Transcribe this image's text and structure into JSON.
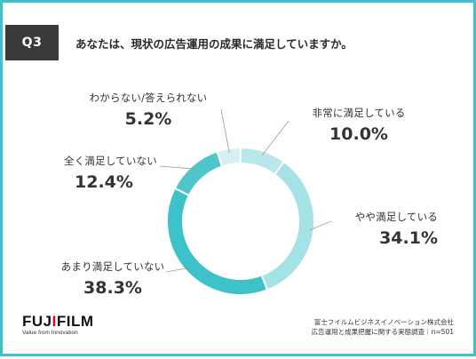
{
  "question": {
    "badge": "Q3",
    "text": "あなたは、現状の広告運用の成果に満足していますか。"
  },
  "chart_data": {
    "type": "pie",
    "categories": [
      "非常に満足している",
      "やや満足している",
      "あまり満足していない",
      "全く満足していない",
      "わからない/答えられない"
    ],
    "values": [
      10.0,
      34.1,
      38.3,
      12.4,
      5.2
    ],
    "labels": [
      "10.0%",
      "34.1%",
      "38.3%",
      "12.4%",
      "5.2%"
    ],
    "colors": [
      "#b9e8ec",
      "#a5e2e6",
      "#3cc2c8",
      "#4fc6cc",
      "#d4f0f2"
    ],
    "donut": true
  },
  "footer": {
    "logo_main": "FUJIFILM",
    "logo_tagline": "Value from Innovation",
    "source_line1": "富士フイルムビジネスイノベーション株式会社",
    "source_line2": "広告運用と成果把握に関する実態調査｜n=501"
  }
}
